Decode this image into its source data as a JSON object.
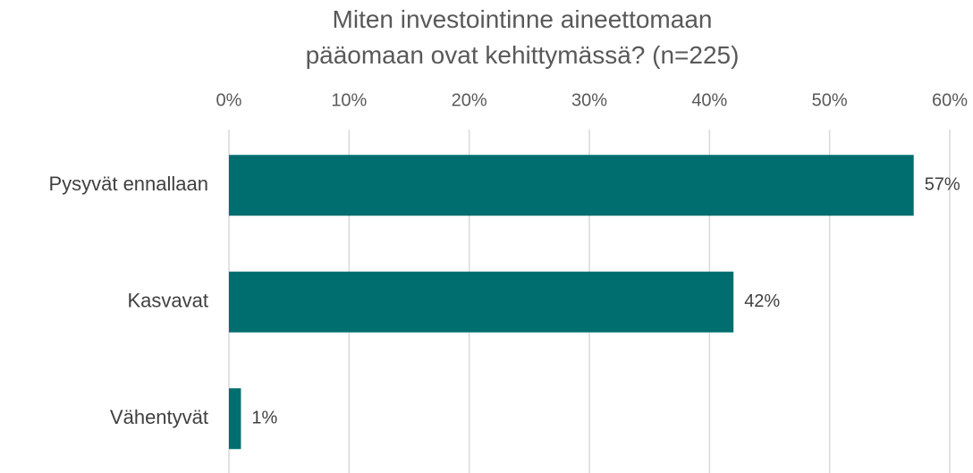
{
  "chart_data": {
    "type": "bar",
    "orientation": "horizontal",
    "title": "Miten investointinne aineettomaan pääomaan ovat kehittymässä? (n=225)",
    "categories": [
      "Pysyvät ennallaan",
      "Kasvavat",
      "Vähentyvät"
    ],
    "values": [
      57,
      42,
      1
    ],
    "value_labels": [
      "57%",
      "42%",
      "1%"
    ],
    "color": "#006e6e",
    "xlim": [
      0,
      60
    ],
    "xticks": [
      {
        "value": 0,
        "label": "0%"
      },
      {
        "value": 10,
        "label": "10%"
      },
      {
        "value": 20,
        "label": "20%"
      },
      {
        "value": 30,
        "label": "30%"
      },
      {
        "value": 40,
        "label": "40%"
      },
      {
        "value": 50,
        "label": "50%"
      },
      {
        "value": 60,
        "label": "60%"
      }
    ],
    "grid": true
  }
}
